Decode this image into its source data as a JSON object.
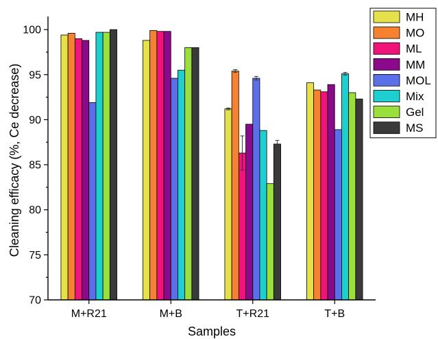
{
  "chart_data": {
    "type": "bar",
    "title": "",
    "xlabel": "Samples",
    "ylabel": "Cleaning efficacy (%, Ce decrease)",
    "ylim": [
      70,
      101
    ],
    "yticks": [
      70,
      75,
      80,
      85,
      90,
      95,
      100
    ],
    "grid": false,
    "legend_position": "top-right",
    "categories": [
      "M+R21",
      "M+B",
      "T+R21",
      "T+B"
    ],
    "series": [
      {
        "name": "MH",
        "color": "#e6e04a",
        "values": [
          99.4,
          98.8,
          91.2,
          94.1
        ],
        "errors": [
          0,
          0,
          0.1,
          0
        ]
      },
      {
        "name": "MO",
        "color": "#f58231",
        "values": [
          99.6,
          99.9,
          95.4,
          93.3
        ],
        "errors": [
          0,
          0,
          0.15,
          0
        ]
      },
      {
        "name": "ML",
        "color": "#f0137a",
        "values": [
          99.0,
          99.8,
          86.3,
          93.1
        ],
        "errors": [
          0,
          0,
          1.9,
          0
        ]
      },
      {
        "name": "MM",
        "color": "#8b0a8b",
        "values": [
          98.8,
          99.8,
          89.5,
          93.9
        ],
        "errors": [
          0,
          0,
          0,
          0
        ]
      },
      {
        "name": "MOL",
        "color": "#5a6fe8",
        "values": [
          91.9,
          94.6,
          94.6,
          88.9
        ],
        "errors": [
          0,
          0,
          0.2,
          0
        ]
      },
      {
        "name": "Mix",
        "color": "#1ecfcf",
        "values": [
          99.7,
          95.5,
          88.8,
          95.1
        ],
        "errors": [
          0,
          0,
          0,
          0.15
        ]
      },
      {
        "name": "Gel",
        "color": "#9adf3c",
        "values": [
          99.7,
          98.0,
          82.9,
          93.0
        ],
        "errors": [
          0,
          0,
          0,
          0
        ]
      },
      {
        "name": "MS",
        "color": "#3a3a3a",
        "values": [
          100.0,
          98.0,
          87.3,
          92.3
        ],
        "errors": [
          0,
          0,
          0.4,
          0
        ]
      }
    ]
  }
}
